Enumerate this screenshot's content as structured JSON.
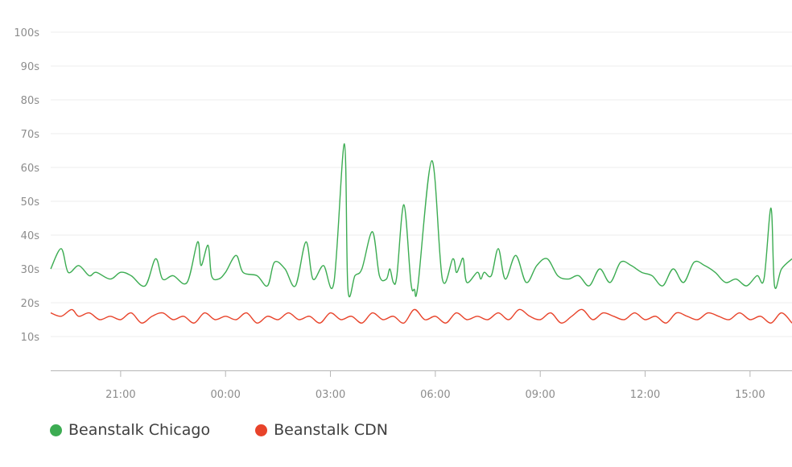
{
  "chart_data": {
    "type": "line",
    "title": "",
    "xlabel": "",
    "ylabel": "",
    "y_ticks": [
      "100s",
      "90s",
      "80s",
      "70s",
      "60s",
      "50s",
      "40s",
      "30s",
      "20s",
      "10s"
    ],
    "y_tick_values": [
      100,
      90,
      80,
      70,
      60,
      50,
      40,
      30,
      20,
      10
    ],
    "ylim": [
      0,
      100
    ],
    "x_ticks": [
      "21:00",
      "00:00",
      "03:00",
      "06:00",
      "09:00",
      "12:00",
      "15:00"
    ],
    "x_tick_hours": [
      21,
      24,
      27,
      30,
      33,
      36,
      39
    ],
    "x_range_hours": [
      19.0,
      40.2
    ],
    "grid": "horizontal",
    "legend_position": "bottom-left",
    "series": [
      {
        "name": "Beanstalk Chicago",
        "color": "#3cac52",
        "x": [
          19.0,
          19.3,
          19.5,
          19.8,
          20.1,
          20.3,
          20.7,
          21.0,
          21.3,
          21.7,
          22.0,
          22.2,
          22.5,
          22.9,
          23.2,
          23.3,
          23.5,
          23.6,
          23.8,
          24.0,
          24.3,
          24.5,
          24.9,
          25.2,
          25.4,
          25.7,
          26.0,
          26.3,
          26.5,
          26.8,
          27.1,
          27.4,
          27.5,
          27.7,
          27.9,
          28.2,
          28.4,
          28.6,
          28.7,
          28.8,
          28.9,
          29.1,
          29.3,
          29.4,
          29.5,
          29.9,
          30.2,
          30.5,
          30.6,
          30.7,
          30.8,
          30.9,
          31.2,
          31.3,
          31.4,
          31.6,
          31.8,
          32.0,
          32.3,
          32.6,
          32.9,
          33.2,
          33.5,
          33.8,
          34.1,
          34.4,
          34.7,
          35.0,
          35.3,
          35.6,
          35.9,
          36.2,
          36.5,
          36.8,
          37.1,
          37.4,
          37.7,
          38.0,
          38.3,
          38.6,
          38.9,
          39.2,
          39.4,
          39.6,
          39.7,
          39.9,
          40.2
        ],
        "values": [
          30,
          36,
          29,
          31,
          28,
          29,
          27,
          29,
          28,
          25,
          33,
          27,
          28,
          26,
          38,
          31,
          37,
          28,
          27,
          29,
          34,
          29,
          28,
          25,
          32,
          30,
          25,
          38,
          27,
          31,
          26,
          67,
          24,
          28,
          30,
          41,
          28,
          27,
          30,
          26,
          28,
          49,
          26,
          24,
          25,
          62,
          27,
          33,
          29,
          31,
          33,
          26,
          29,
          27,
          29,
          28,
          36,
          27,
          34,
          26,
          31,
          33,
          28,
          27,
          28,
          25,
          30,
          26,
          32,
          31,
          29,
          28,
          25,
          30,
          26,
          32,
          31,
          29,
          26,
          27,
          25,
          28,
          27,
          48,
          25,
          30,
          33
        ]
      },
      {
        "name": "Beanstalk CDN",
        "color": "#e8432a",
        "x": [
          19.0,
          19.3,
          19.6,
          19.8,
          20.1,
          20.4,
          20.7,
          21.0,
          21.3,
          21.6,
          21.9,
          22.2,
          22.5,
          22.8,
          23.1,
          23.4,
          23.7,
          24.0,
          24.3,
          24.6,
          24.9,
          25.2,
          25.5,
          25.8,
          26.1,
          26.4,
          26.7,
          27.0,
          27.3,
          27.6,
          27.9,
          28.2,
          28.5,
          28.8,
          29.1,
          29.4,
          29.7,
          30.0,
          30.3,
          30.6,
          30.9,
          31.2,
          31.5,
          31.8,
          32.1,
          32.4,
          32.7,
          33.0,
          33.3,
          33.6,
          33.9,
          34.2,
          34.5,
          34.8,
          35.1,
          35.4,
          35.7,
          36.0,
          36.3,
          36.6,
          36.9,
          37.2,
          37.5,
          37.8,
          38.1,
          38.4,
          38.7,
          39.0,
          39.3,
          39.6,
          39.9,
          40.2
        ],
        "values": [
          17,
          16,
          18,
          16,
          17,
          15,
          16,
          15,
          17,
          14,
          16,
          17,
          15,
          16,
          14,
          17,
          15,
          16,
          15,
          17,
          14,
          16,
          15,
          17,
          15,
          16,
          14,
          17,
          15,
          16,
          14,
          17,
          15,
          16,
          14,
          18,
          15,
          16,
          14,
          17,
          15,
          16,
          15,
          17,
          15,
          18,
          16,
          15,
          17,
          14,
          16,
          18,
          15,
          17,
          16,
          15,
          17,
          15,
          16,
          14,
          17,
          16,
          15,
          17,
          16,
          15,
          17,
          15,
          16,
          14,
          17,
          14
        ]
      }
    ]
  }
}
